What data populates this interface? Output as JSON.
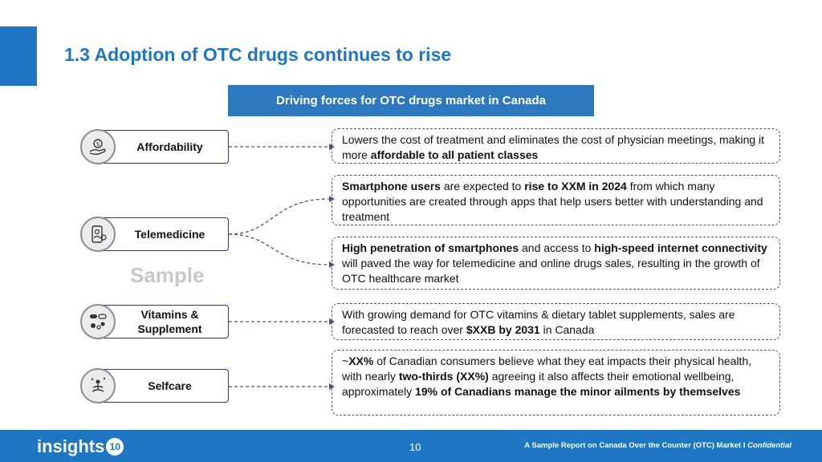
{
  "title": "1.3 Adoption of OTC drugs continues to rise",
  "banner": "Driving forces for OTC drugs market in Canada",
  "watermark": "Sample",
  "drivers": [
    {
      "label": "Affordability",
      "icon": "hand-coin-icon"
    },
    {
      "label": "Telemedicine",
      "icon": "phone-doctor-icon"
    },
    {
      "label": "Vitamins & Supplement",
      "icon": "pills-icon"
    },
    {
      "label": "Selfcare",
      "icon": "meditation-icon"
    }
  ],
  "cards": {
    "affordability": {
      "t1": "Lowers the cost of treatment and eliminates the cost of physician meetings, making it more ",
      "b1": "affordable to all patient classes"
    },
    "smartphone": {
      "b1": "Smartphone users",
      "t1": " are expected to ",
      "b2": "rise to XXM in 2024",
      "t2": " from which many opportunities are created through apps that help users better with understanding and treatment"
    },
    "penetration": {
      "b1": "High penetration of smartphones",
      "t1": " and access to ",
      "b2": "high-speed internet connectivity",
      "t2": " will paved the way for telemedicine and online drugs sales, resulting in the growth of OTC healthcare market"
    },
    "vitamins": {
      "t1": "With growing demand for OTC vitamins & dietary tablet supplements, sales are forecasted to reach over ",
      "b1": "$XXB by 2031",
      "t2": " in Canada"
    },
    "selfcare": {
      "t0": "~",
      "b1": "XX%",
      "t1": " of Canadian consumers believe what they eat impacts their physical health, with nearly ",
      "b2": "two-thirds (XX%)",
      "t2": " agreeing it also affects their emotional wellbeing, approximately ",
      "b3": "19% of Canadians manage the minor ailments by themselves"
    }
  },
  "footer": {
    "logo_text": "insights",
    "logo_badge": "10",
    "page_number": "10",
    "note": "A Sample Report on Canada Over the Counter (OTC) Market I ",
    "note_italic": "Confidential"
  },
  "colors": {
    "accent": "#1f77c4",
    "banner": "#2d78bf",
    "border": "#2f3a67"
  }
}
